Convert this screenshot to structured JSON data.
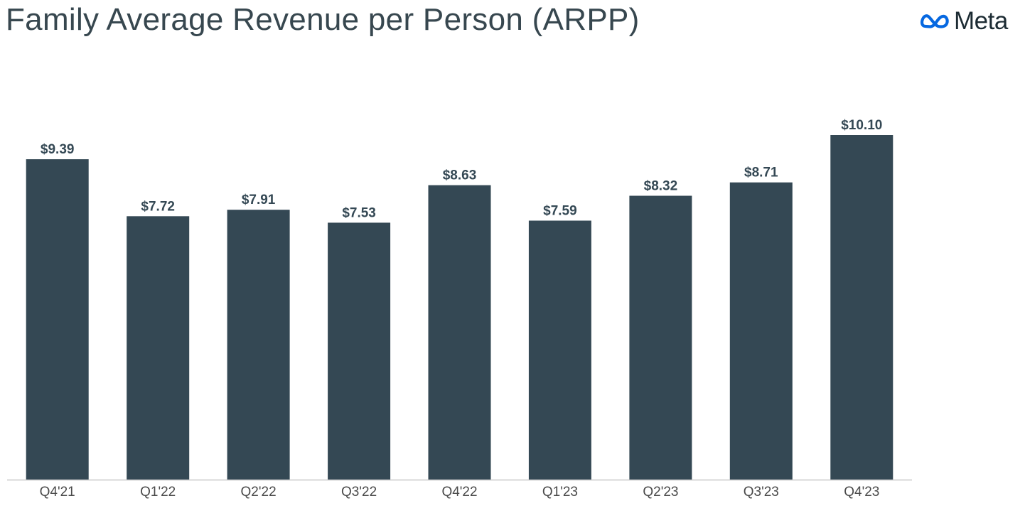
{
  "header": {
    "title": "Family Average Revenue per Person (ARPP)",
    "brand": {
      "name": "Meta",
      "icon": "meta-infinity-logo-icon",
      "icon_color": "#0668e1",
      "text_color": "#1c2b33"
    }
  },
  "chart_data": {
    "type": "bar",
    "title": "Family Average Revenue per Person (ARPP)",
    "xlabel": "",
    "ylabel": "",
    "categories": [
      "Q4'21",
      "Q1'22",
      "Q2'22",
      "Q3'22",
      "Q4'22",
      "Q1'23",
      "Q2'23",
      "Q3'23",
      "Q4'23"
    ],
    "values": [
      9.39,
      7.72,
      7.91,
      7.53,
      8.63,
      7.59,
      8.32,
      8.71,
      10.1
    ],
    "data_labels": [
      "$9.39",
      "$7.72",
      "$7.91",
      "$7.53",
      "$8.63",
      "$7.59",
      "$8.32",
      "$8.71",
      "$10.10"
    ],
    "ylim": [
      0,
      10.1
    ],
    "grid": false,
    "legend": "none",
    "colors": {
      "bar": "#344854",
      "data_label": "#344854",
      "tick_label": "#4a4a4a",
      "axis_line": "#c8c8c8"
    }
  }
}
